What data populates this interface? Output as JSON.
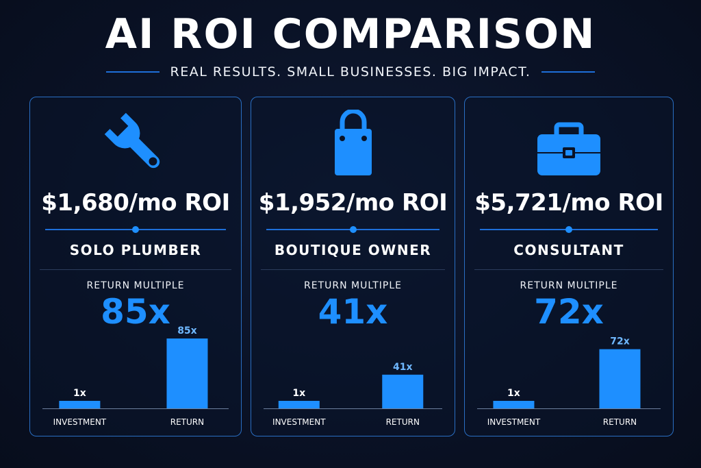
{
  "header": {
    "title": "AI ROI COMPARISON",
    "subtitle": "REAL RESULTS. SMALL BUSINESSES. BIG IMPACT."
  },
  "colors": {
    "accent": "#1e8fff",
    "background": "#0a1226",
    "card_border": "#2a6fc4"
  },
  "cards": [
    {
      "icon": "wrench-icon",
      "roi": "$1,680/mo ROI",
      "role": "SOLO PLUMBER",
      "multiple_label": "RETURN MULTIPLE",
      "multiple": "85x"
    },
    {
      "icon": "shopping-bag-icon",
      "roi": "$1,952/mo ROI",
      "role": "BOUTIQUE OWNER",
      "multiple_label": "RETURN MULTIPLE",
      "multiple": "41x"
    },
    {
      "icon": "briefcase-icon",
      "roi": "$5,721/mo ROI",
      "role": "CONSULTANT",
      "multiple_label": "RETURN MULTIPLE",
      "multiple": "72x"
    }
  ],
  "chart_data": [
    {
      "type": "bar",
      "categories": [
        "INVESTMENT",
        "RETURN"
      ],
      "values": [
        1,
        85
      ],
      "data_labels": [
        "1x",
        "85x"
      ]
    },
    {
      "type": "bar",
      "categories": [
        "INVESTMENT",
        "RETURN"
      ],
      "values": [
        1,
        41
      ],
      "data_labels": [
        "1x",
        "41x"
      ]
    },
    {
      "type": "bar",
      "categories": [
        "INVESTMENT",
        "RETURN"
      ],
      "values": [
        1,
        72
      ],
      "data_labels": [
        "1x",
        "72x"
      ]
    }
  ]
}
